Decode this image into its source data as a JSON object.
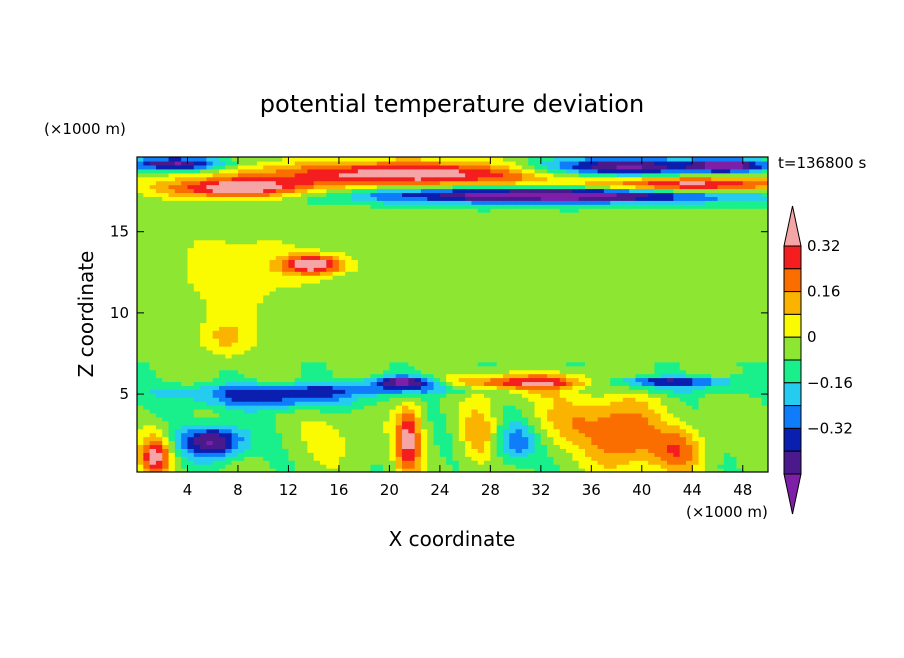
{
  "chart_data": {
    "type": "heatmap",
    "title": "potential temperature deviation",
    "xlabel": "X coordinate",
    "ylabel": "Z coordinate",
    "x_unit": "(×1000 m)",
    "y_unit": "(×1000 m)",
    "time_label": "t=136800 s",
    "xlim": [
      0,
      50
    ],
    "ylim": [
      0.2,
      19.6
    ],
    "x_ticks": [
      {
        "value": 4,
        "label": "4"
      },
      {
        "value": 8,
        "label": "8"
      },
      {
        "value": 12,
        "label": "12"
      },
      {
        "value": 16,
        "label": "16"
      },
      {
        "value": 20,
        "label": "20"
      },
      {
        "value": 24,
        "label": "24"
      },
      {
        "value": 28,
        "label": "28"
      },
      {
        "value": 32,
        "label": "32"
      },
      {
        "value": 36,
        "label": "36"
      },
      {
        "value": 40,
        "label": "40"
      },
      {
        "value": 44,
        "label": "44"
      },
      {
        "value": 48,
        "label": "48"
      }
    ],
    "y_ticks": [
      {
        "value": 5,
        "label": "5"
      },
      {
        "value": 10,
        "label": "10"
      },
      {
        "value": 15,
        "label": "15"
      }
    ],
    "colorbar": {
      "colors": [
        "#7e1fa8",
        "#4a1a8c",
        "#0a1fb0",
        "#0f7dfa",
        "#26ccf0",
        "#19f08c",
        "#8de632",
        "#fafa00",
        "#fab400",
        "#fa6e00",
        "#f51e1e",
        "#f5a5a5"
      ],
      "tick_labels": [
        {
          "value": 0.32,
          "label": "0.32"
        },
        {
          "value": 0.16,
          "label": "0.16"
        },
        {
          "value": 0,
          "label": "0"
        },
        {
          "value": -0.16,
          "label": "−0.16"
        },
        {
          "value": -0.32,
          "label": "−0.32"
        }
      ],
      "levels": [
        -0.4,
        -0.32,
        -0.24,
        -0.16,
        -0.08,
        0,
        0.08,
        0.16,
        0.24,
        0.32,
        0.4
      ]
    },
    "field_description": "approximate deviation field: strong layers near z≈17–19, neutral mid layer, warm/cool cells below z≈6"
  }
}
